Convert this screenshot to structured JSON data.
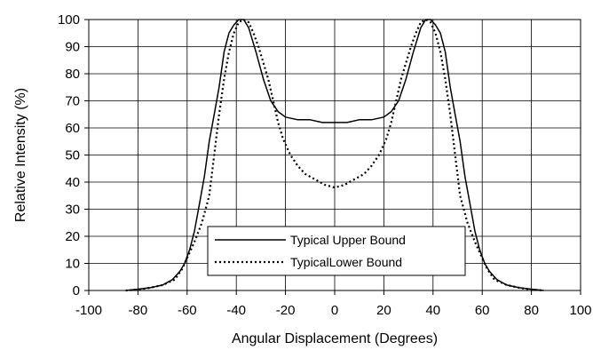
{
  "chart_data": {
    "type": "line",
    "xlabel": "Angular Displacement (Degrees)",
    "ylabel": "Relative Intensity (%)",
    "xlim": [
      -100,
      100
    ],
    "ylim": [
      0,
      100
    ],
    "x_ticks": [
      "-100",
      "-80",
      "-60",
      "-40",
      "-20",
      "0",
      "20",
      "40",
      "60",
      "80",
      "100"
    ],
    "y_ticks": [
      "0",
      "10",
      "20",
      "30",
      "40",
      "50",
      "60",
      "70",
      "80",
      "90",
      "100"
    ],
    "grid": true,
    "legend_position": "lower-center",
    "series": [
      {
        "name": "Typical Upper Bound",
        "style": "solid",
        "color": "#000000",
        "points": [
          [
            -85,
            0
          ],
          [
            -80,
            0.5
          ],
          [
            -75,
            1
          ],
          [
            -70,
            2
          ],
          [
            -66,
            4
          ],
          [
            -63,
            7
          ],
          [
            -61,
            10
          ],
          [
            -59,
            15
          ],
          [
            -57,
            22
          ],
          [
            -55,
            32
          ],
          [
            -53,
            42
          ],
          [
            -51,
            55
          ],
          [
            -49,
            65
          ],
          [
            -47,
            75
          ],
          [
            -45,
            88
          ],
          [
            -43,
            95
          ],
          [
            -41,
            98
          ],
          [
            -39,
            100
          ],
          [
            -37,
            100
          ],
          [
            -35,
            97
          ],
          [
            -32,
            88
          ],
          [
            -29,
            78
          ],
          [
            -26,
            70
          ],
          [
            -23,
            66
          ],
          [
            -20,
            64
          ],
          [
            -15,
            63
          ],
          [
            -10,
            63
          ],
          [
            -5,
            62
          ],
          [
            0,
            62
          ],
          [
            5,
            62
          ],
          [
            10,
            63
          ],
          [
            15,
            63
          ],
          [
            20,
            64
          ],
          [
            23,
            66
          ],
          [
            26,
            70
          ],
          [
            29,
            78
          ],
          [
            32,
            88
          ],
          [
            35,
            97
          ],
          [
            37,
            100
          ],
          [
            39,
            100
          ],
          [
            41,
            98
          ],
          [
            43,
            95
          ],
          [
            45,
            88
          ],
          [
            47,
            75
          ],
          [
            49,
            65
          ],
          [
            51,
            55
          ],
          [
            53,
            42
          ],
          [
            55,
            32
          ],
          [
            57,
            22
          ],
          [
            59,
            15
          ],
          [
            61,
            10
          ],
          [
            63,
            7
          ],
          [
            66,
            4
          ],
          [
            70,
            2
          ],
          [
            75,
            1
          ],
          [
            80,
            0.5
          ],
          [
            85,
            0
          ]
        ]
      },
      {
        "name": "TypicalLower Bound",
        "style": "dotted",
        "color": "#000000",
        "points": [
          [
            -85,
            0
          ],
          [
            -80,
            0.3
          ],
          [
            -75,
            1
          ],
          [
            -70,
            2
          ],
          [
            -65,
            4
          ],
          [
            -62,
            8
          ],
          [
            -60,
            12
          ],
          [
            -57,
            18
          ],
          [
            -54,
            25
          ],
          [
            -51,
            35
          ],
          [
            -49,
            50
          ],
          [
            -47,
            65
          ],
          [
            -45,
            78
          ],
          [
            -43,
            88
          ],
          [
            -41,
            95
          ],
          [
            -39,
            99
          ],
          [
            -37,
            100
          ],
          [
            -35,
            99
          ],
          [
            -33,
            95
          ],
          [
            -31,
            90
          ],
          [
            -29,
            84
          ],
          [
            -27,
            78
          ],
          [
            -25,
            70
          ],
          [
            -23,
            62
          ],
          [
            -21,
            56
          ],
          [
            -18,
            50
          ],
          [
            -15,
            46
          ],
          [
            -12,
            43
          ],
          [
            -8,
            41
          ],
          [
            -4,
            39
          ],
          [
            0,
            38
          ],
          [
            4,
            39
          ],
          [
            8,
            41
          ],
          [
            12,
            43
          ],
          [
            15,
            46
          ],
          [
            18,
            50
          ],
          [
            21,
            56
          ],
          [
            23,
            62
          ],
          [
            25,
            70
          ],
          [
            27,
            78
          ],
          [
            29,
            84
          ],
          [
            31,
            90
          ],
          [
            33,
            95
          ],
          [
            35,
            99
          ],
          [
            37,
            100
          ],
          [
            39,
            99
          ],
          [
            41,
            95
          ],
          [
            43,
            88
          ],
          [
            45,
            78
          ],
          [
            47,
            65
          ],
          [
            49,
            50
          ],
          [
            51,
            35
          ],
          [
            54,
            25
          ],
          [
            57,
            18
          ],
          [
            60,
            12
          ],
          [
            62,
            8
          ],
          [
            65,
            4
          ],
          [
            70,
            2
          ],
          [
            75,
            1
          ],
          [
            80,
            0.3
          ],
          [
            85,
            0
          ]
        ]
      }
    ]
  }
}
